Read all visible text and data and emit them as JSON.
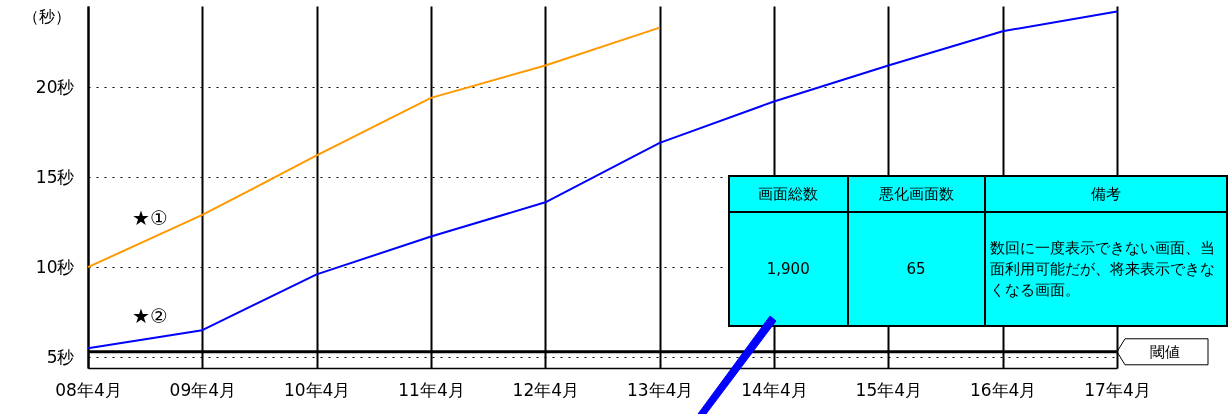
{
  "chart_data": {
    "type": "line",
    "ylabel": "（秒）",
    "categories": [
      "08年4月",
      "09年4月",
      "10年4月",
      "11年4月",
      "12年4月",
      "13年4月",
      "14年4月",
      "15年4月",
      "16年4月",
      "17年4月"
    ],
    "series": [
      {
        "name": "★①",
        "color": "#ff9900",
        "values": [
          10.0,
          12.9,
          16.2,
          19.4,
          21.2,
          23.3,
          null,
          null,
          null,
          null
        ]
      },
      {
        "name": "★②",
        "color": "#0000ff",
        "values": [
          5.5,
          6.5,
          9.6,
          11.7,
          13.6,
          16.9,
          19.2,
          21.2,
          23.1,
          24.2
        ]
      }
    ],
    "ylim": [
      4.4,
      24.5
    ],
    "yticks": [
      {
        "value": 5,
        "label": "5秒"
      },
      {
        "value": 10,
        "label": "10秒"
      },
      {
        "value": 15,
        "label": "15秒"
      },
      {
        "value": 20,
        "label": "20秒"
      }
    ],
    "grid": true,
    "ref_lines": [
      {
        "axis": "y",
        "value": 5.3,
        "label": "閾値",
        "color": "#000000"
      }
    ],
    "annotations": [
      "画面総数",
      "悪化画面数",
      "備考",
      "1,900",
      "65",
      "数回に一度表示できない画面、当面利用可能だが、将来表示できなくなる画面。"
    ]
  }
}
